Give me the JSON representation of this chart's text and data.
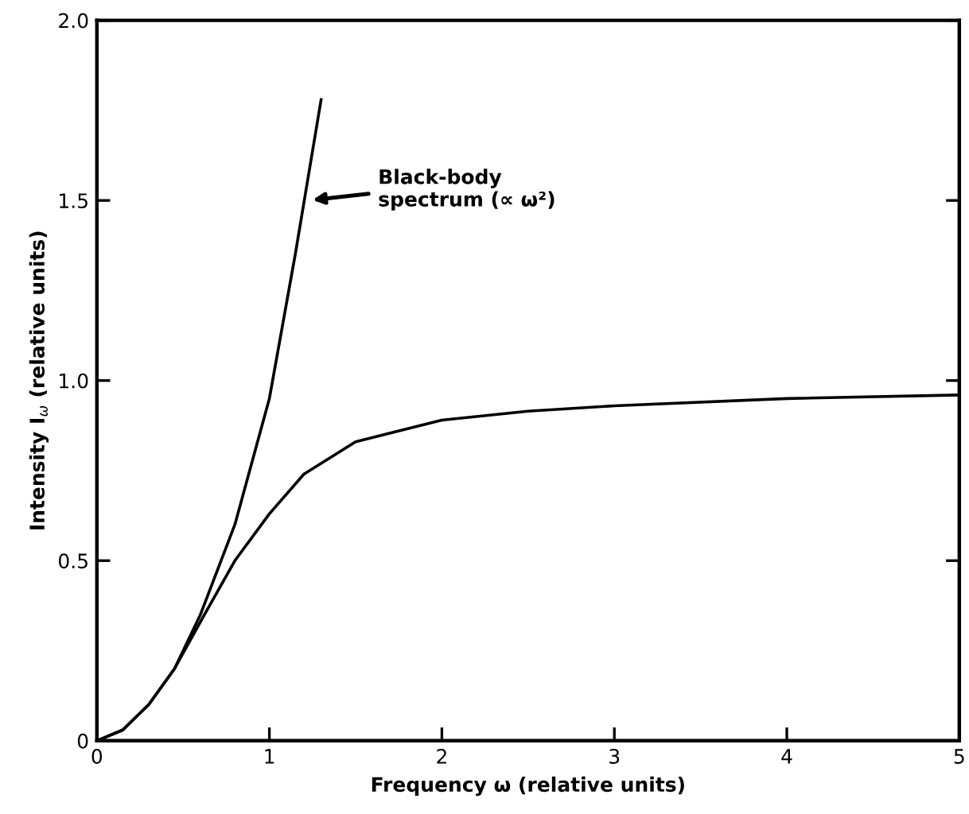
{
  "chart_data": {
    "type": "line",
    "xlabel": "Frequency ω (relative units)",
    "ylabel": "Intensity I$_{ω}$ (relative units)",
    "xlim": [
      0,
      5
    ],
    "ylim": [
      0,
      2.0
    ],
    "xticks": [
      0,
      1,
      2,
      3,
      4,
      5
    ],
    "yticks": [
      {
        "value": 0,
        "label": "0"
      },
      {
        "value": 0.5,
        "label": "0.5"
      },
      {
        "value": 1.0,
        "label": "1.0"
      },
      {
        "value": 1.5,
        "label": "1.5"
      },
      {
        "value": 2.0,
        "label": "2.0"
      }
    ],
    "grid": false,
    "marker": "none",
    "line_style": "solid",
    "series": [
      {
        "color": "#000000",
        "x": [
          0,
          0.15,
          0.3,
          0.45,
          0.6,
          0.8,
          1.0,
          1.15,
          1.3
        ],
        "values": [
          0,
          0.03,
          0.1,
          0.2,
          0.35,
          0.6,
          0.95,
          1.35,
          1.78
        ]
      },
      {
        "color": "#000000",
        "x": [
          0,
          0.15,
          0.3,
          0.45,
          0.6,
          0.8,
          1.0,
          1.2,
          1.5,
          2,
          2.5,
          3,
          4,
          5
        ],
        "values": [
          0,
          0.03,
          0.1,
          0.2,
          0.33,
          0.5,
          0.63,
          0.74,
          0.83,
          0.89,
          0.915,
          0.93,
          0.95,
          0.96
        ]
      }
    ],
    "annotations": [
      "Black-body\nspectrum (∝ ω²)"
    ]
  }
}
